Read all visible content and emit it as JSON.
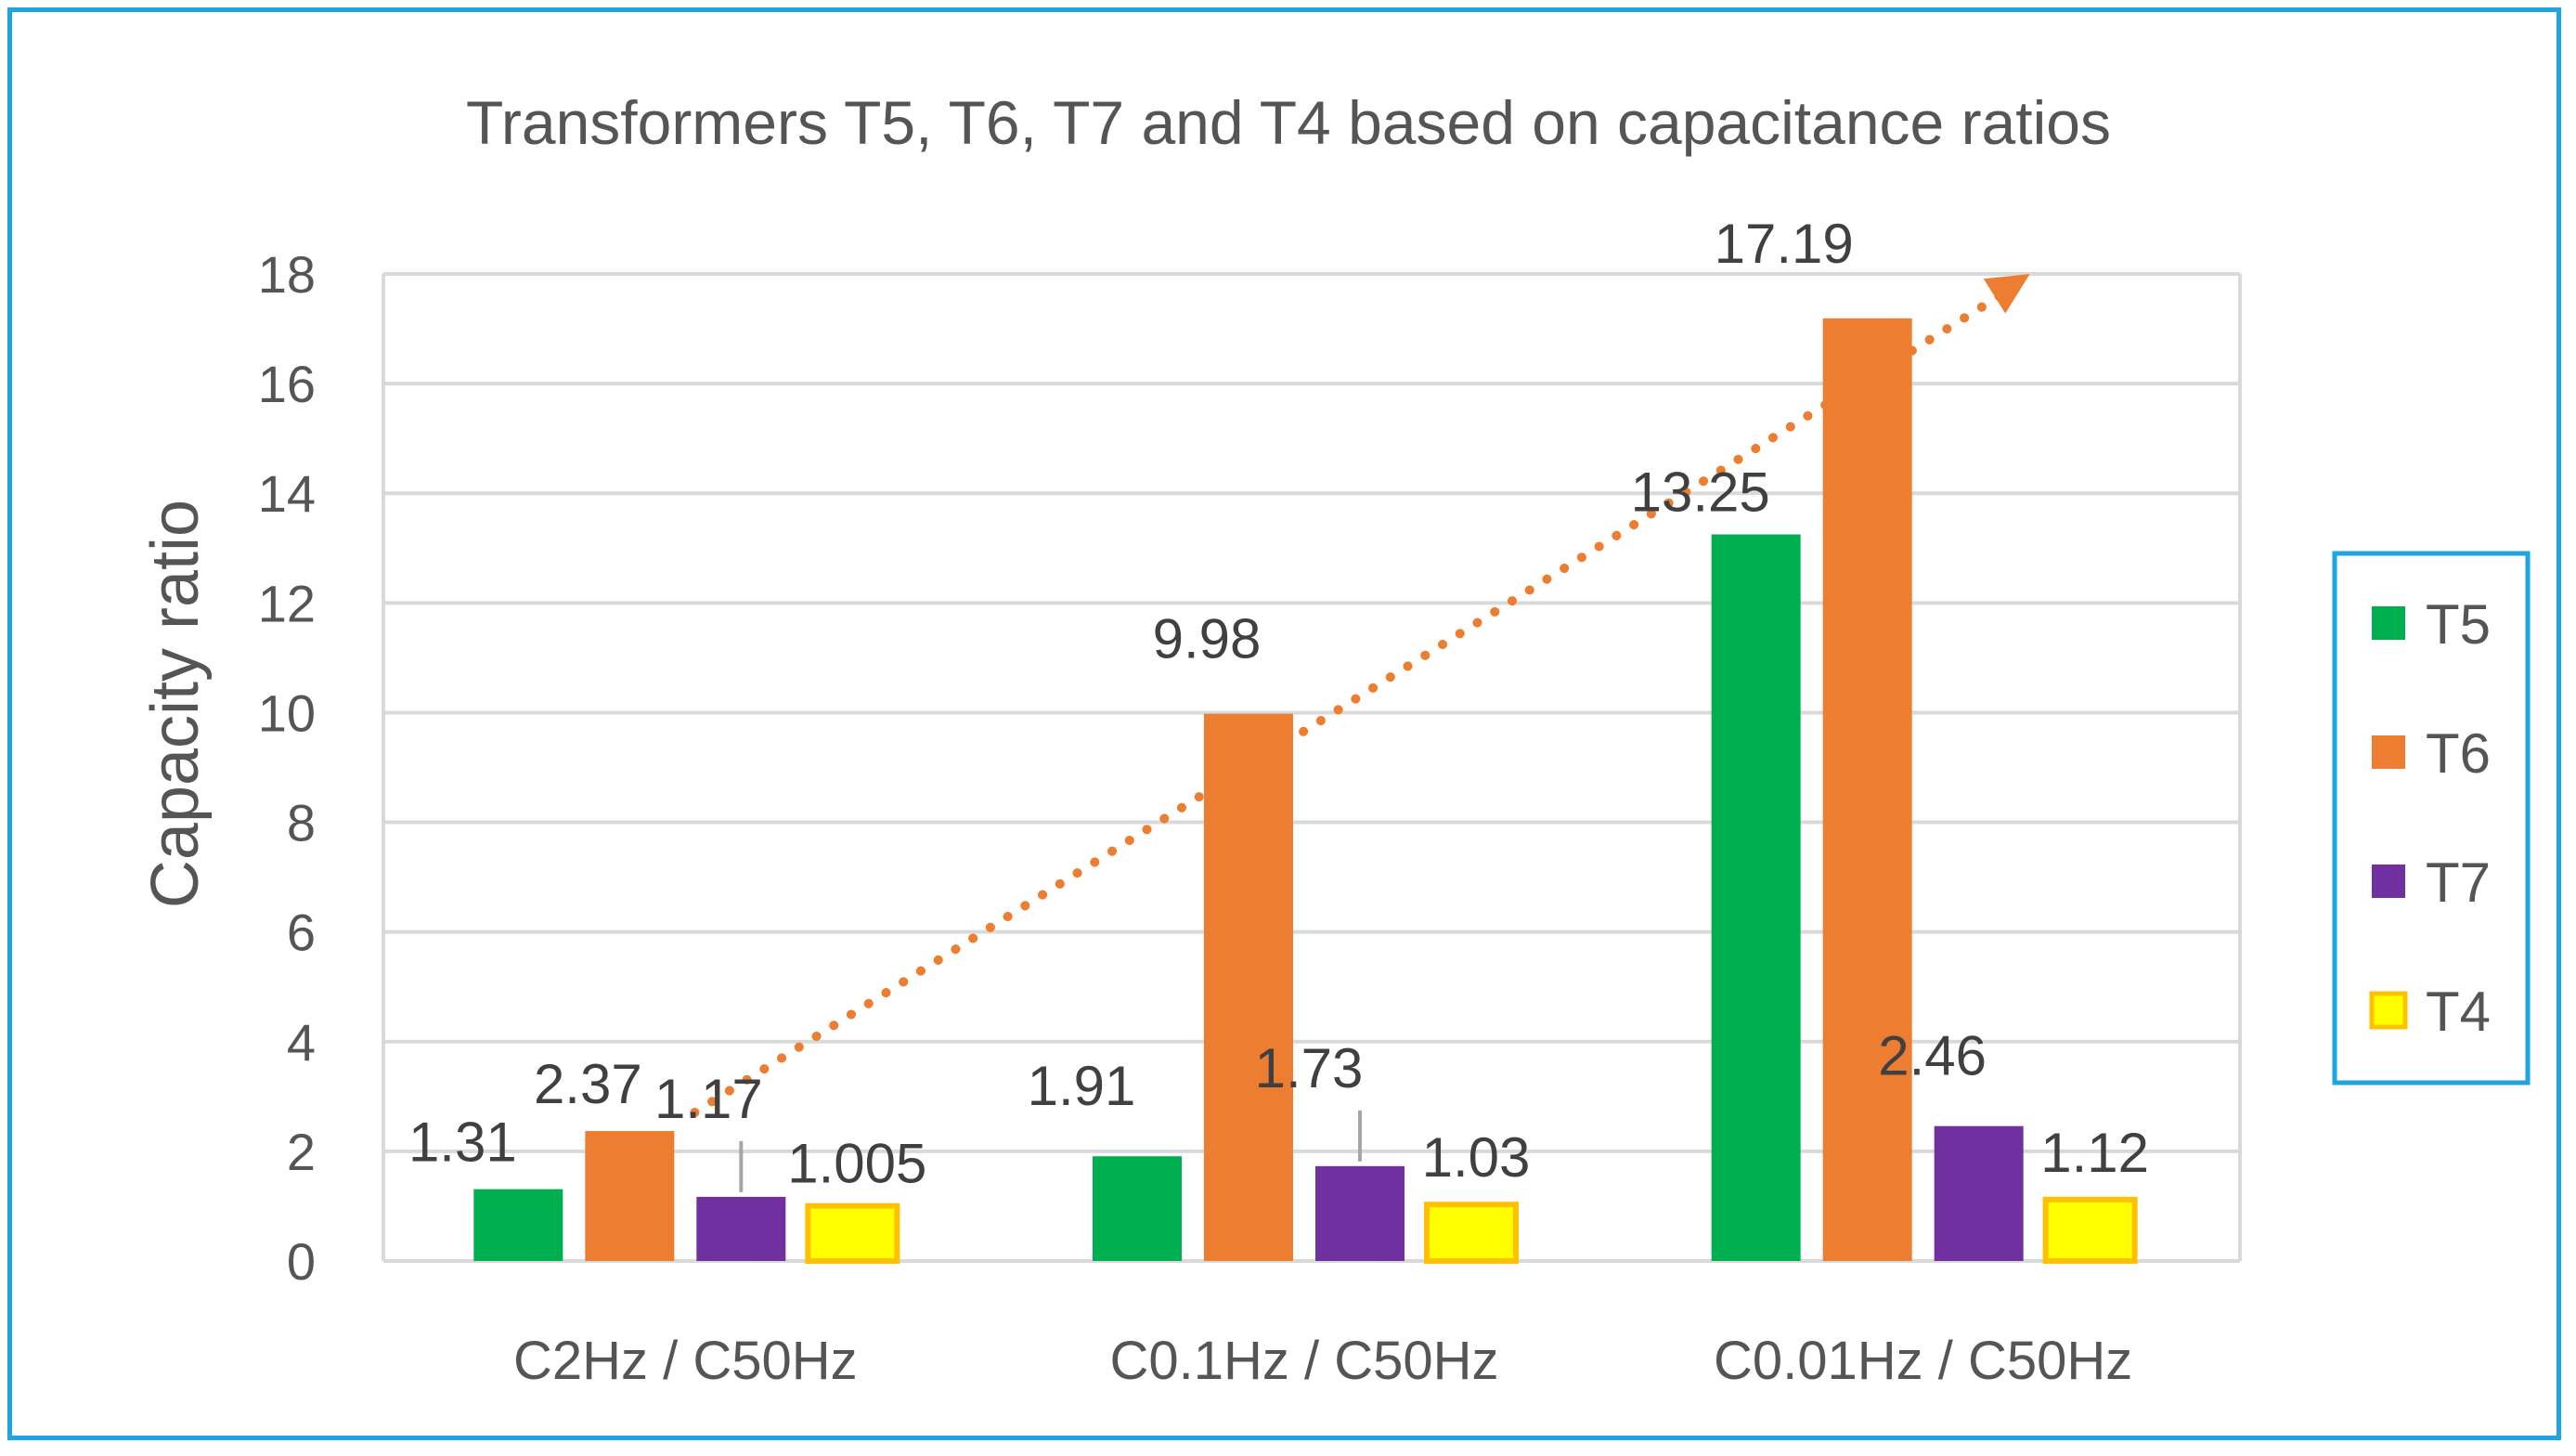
{
  "chart_data": {
    "type": "bar",
    "title": "Transformers T5, T6, T7 and T4 based on capacitance ratios",
    "xlabel": "",
    "ylabel": "Capacity ratio",
    "ylim": [
      0,
      18
    ],
    "yticks": [
      0,
      2,
      4,
      6,
      8,
      10,
      12,
      14,
      16,
      18
    ],
    "grid": true,
    "legend_position": "right",
    "categories": [
      "C2Hz / C50Hz",
      "C0.1Hz / C50Hz",
      "C0.01Hz / C50Hz"
    ],
    "series": [
      {
        "name": "T5",
        "color": "#00b050",
        "values": [
          1.31,
          1.91,
          13.25
        ],
        "labels": [
          "1.31",
          "1.91",
          "13.25"
        ]
      },
      {
        "name": "T6",
        "color": "#ed7d31",
        "values": [
          2.37,
          9.98,
          17.19
        ],
        "labels": [
          "2.37",
          "9.98",
          "17.19"
        ]
      },
      {
        "name": "T7",
        "color": "#7030a0",
        "values": [
          1.17,
          1.73,
          2.46
        ],
        "labels": [
          "1.17",
          "1.73",
          "2.46"
        ]
      },
      {
        "name": "T4",
        "color": "#ffff00",
        "border": "#ffc000",
        "values": [
          1.005,
          1.03,
          1.12
        ],
        "labels": [
          "1.005",
          "1.03",
          "1.12"
        ]
      }
    ],
    "trendline": {
      "series": "T6",
      "style": "dotted-arrow",
      "color": "#ed7d31"
    }
  },
  "colors": {
    "frame": "#1fa6e0",
    "grid": "#d9d9d9",
    "text": "#555555"
  }
}
